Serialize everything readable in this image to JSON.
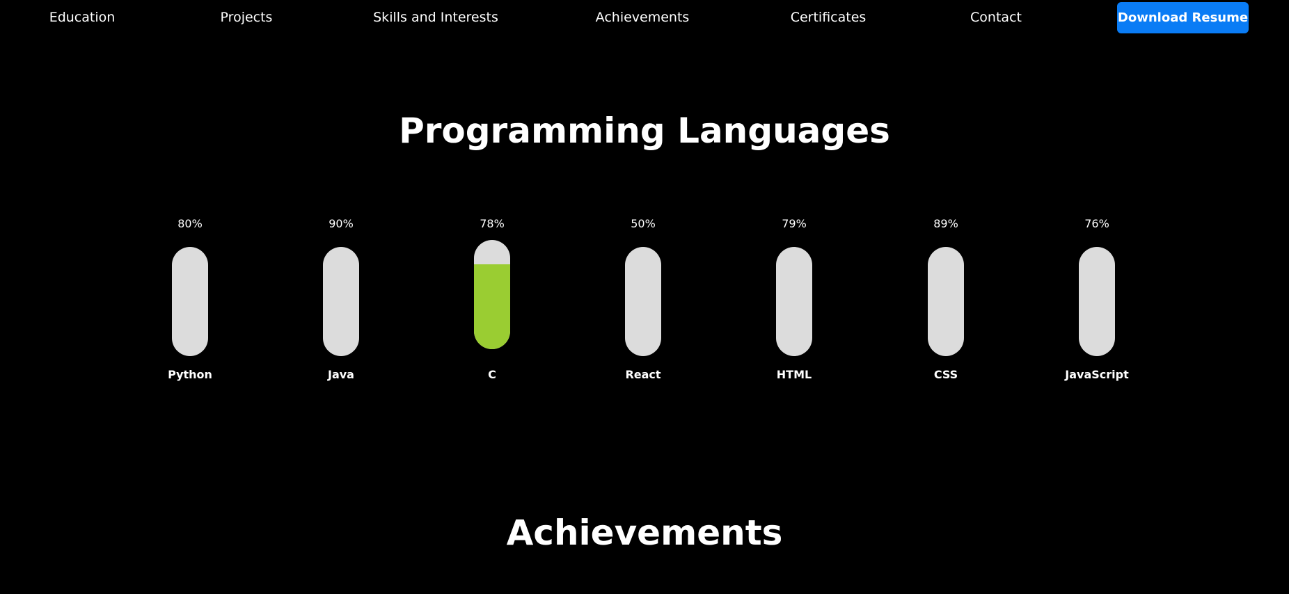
{
  "nav": {
    "links": [
      {
        "label": "Education"
      },
      {
        "label": "Projects"
      },
      {
        "label": "Skills and Interests"
      },
      {
        "label": "Achievements"
      },
      {
        "label": "Certificates"
      },
      {
        "label": "Contact"
      }
    ],
    "resume_button": "Download Resume"
  },
  "colors": {
    "background": "#000000",
    "text": "#ffffff",
    "button": "#0a7cf5",
    "bar_track": "#dcdcdc",
    "bar_fill": "#9acd32"
  },
  "programming": {
    "title": "Programming Languages",
    "skills": [
      {
        "name": "Python",
        "percent_label": "80%",
        "level": 80,
        "filled": false
      },
      {
        "name": "Java",
        "percent_label": "90%",
        "level": 90,
        "filled": false
      },
      {
        "name": "C",
        "percent_label": "78%",
        "level": 78,
        "filled": true
      },
      {
        "name": "React",
        "percent_label": "50%",
        "level": 50,
        "filled": false
      },
      {
        "name": "HTML",
        "percent_label": "79%",
        "level": 79,
        "filled": false
      },
      {
        "name": "CSS",
        "percent_label": "89%",
        "level": 89,
        "filled": false
      },
      {
        "name": "JavaScript",
        "percent_label": "76%",
        "level": 76,
        "filled": false
      }
    ]
  },
  "achievements": {
    "title": "Achievements"
  }
}
